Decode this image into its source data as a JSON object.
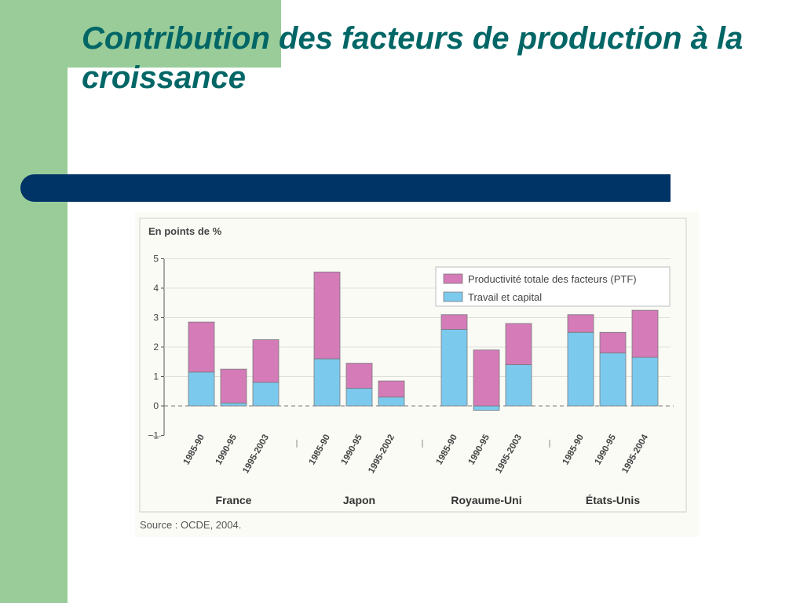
{
  "slide": {
    "title": "Contribution des facteurs de production à la croissance"
  },
  "colors": {
    "ptf": "#d47bb8",
    "travail": "#7cc9ee",
    "title": "#006666",
    "blue_bar": "#003366",
    "green": "#99cc99"
  },
  "chart_data": {
    "type": "bar",
    "stacked": true,
    "ylabel": "En points de %",
    "ylim": [
      -1,
      5
    ],
    "yticks": [
      -1,
      0,
      1,
      2,
      3,
      4,
      5
    ],
    "source": "Source : OCDE, 2004.",
    "legend_position": "top-right",
    "series": [
      {
        "name": "Productivité totale des facteurs (PTF)",
        "key": "ptf",
        "color": "#d47bb8"
      },
      {
        "name": "Travail et capital",
        "key": "travail",
        "color": "#7cc9ee"
      }
    ],
    "groups": [
      {
        "country": "France",
        "periods": [
          {
            "label": "1985-90",
            "travail": 1.15,
            "ptf": 1.7
          },
          {
            "label": "1990-95",
            "travail": 0.1,
            "ptf": 1.15
          },
          {
            "label": "1995-2003",
            "travail": 0.8,
            "ptf": 1.45
          }
        ]
      },
      {
        "country": "Japon",
        "periods": [
          {
            "label": "1985-90",
            "travail": 1.6,
            "ptf": 2.95
          },
          {
            "label": "1990-95",
            "travail": 0.6,
            "ptf": 0.85
          },
          {
            "label": "1995-2002",
            "travail": 0.3,
            "ptf": 0.55
          }
        ]
      },
      {
        "country": "Royaume-Uni",
        "periods": [
          {
            "label": "1985-90",
            "travail": 2.6,
            "ptf": 0.5
          },
          {
            "label": "1990-95",
            "travail": -0.15,
            "ptf": 1.9
          },
          {
            "label": "1995-2003",
            "travail": 1.4,
            "ptf": 1.4
          }
        ]
      },
      {
        "country": "États-Unis",
        "periods": [
          {
            "label": "1985-90",
            "travail": 2.5,
            "ptf": 0.6
          },
          {
            "label": "1990-95",
            "travail": 1.8,
            "ptf": 0.7
          },
          {
            "label": "1995-2004",
            "travail": 1.65,
            "ptf": 1.6
          }
        ]
      }
    ]
  }
}
